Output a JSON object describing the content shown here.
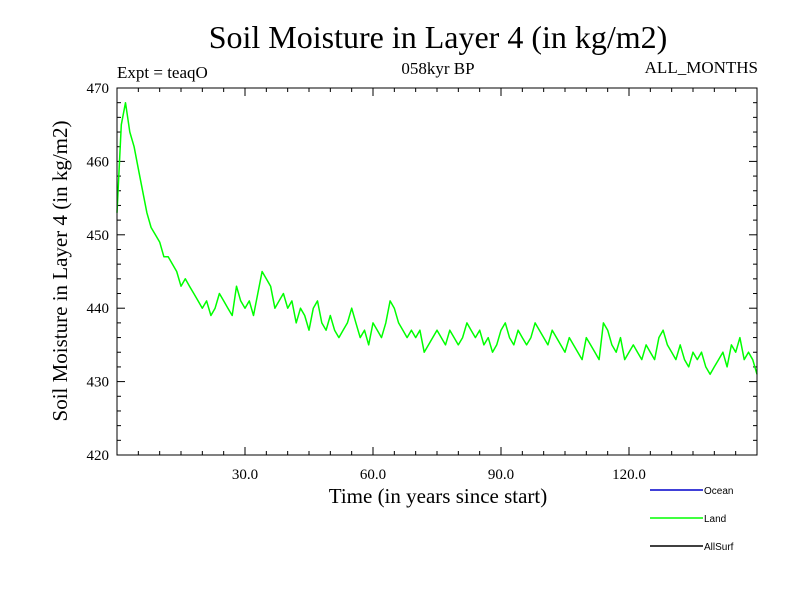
{
  "chart_data": {
    "type": "line",
    "title": "Soil Moisture in Layer 4 (in kg/m2)",
    "subtitle_left": "Expt = teaqO",
    "subtitle_center": "058kyr BP",
    "subtitle_right": "ALL_MONTHS",
    "xlabel": "Time (in years since start)",
    "ylabel": "Soil Moisture in Layer 4 (in kg/m2)",
    "xlim": [
      0,
      150
    ],
    "ylim": [
      420,
      470
    ],
    "x_ticks": [
      30,
      60,
      90,
      120
    ],
    "x_tick_labels": [
      "30.0",
      "60.0",
      "90.0",
      "120.0"
    ],
    "y_ticks": [
      420,
      430,
      440,
      450,
      460,
      470
    ],
    "y_tick_labels": [
      "420",
      "430",
      "440",
      "450",
      "460",
      "470"
    ],
    "legend": [
      {
        "name": "Ocean",
        "color": "#0000cc"
      },
      {
        "name": "Land",
        "color": "#00ff00"
      },
      {
        "name": "AllSurf",
        "color": "#000000"
      }
    ],
    "series": [
      {
        "name": "Land",
        "color": "#00ff00",
        "x": [
          0,
          1,
          2,
          3,
          4,
          5,
          6,
          7,
          8,
          9,
          10,
          11,
          12,
          13,
          14,
          15,
          16,
          17,
          18,
          19,
          20,
          21,
          22,
          23,
          24,
          25,
          26,
          27,
          28,
          29,
          30,
          31,
          32,
          33,
          34,
          35,
          36,
          37,
          38,
          39,
          40,
          41,
          42,
          43,
          44,
          45,
          46,
          47,
          48,
          49,
          50,
          51,
          52,
          53,
          54,
          55,
          56,
          57,
          58,
          59,
          60,
          61,
          62,
          63,
          64,
          65,
          66,
          67,
          68,
          69,
          70,
          71,
          72,
          73,
          74,
          75,
          76,
          77,
          78,
          79,
          80,
          81,
          82,
          83,
          84,
          85,
          86,
          87,
          88,
          89,
          90,
          91,
          92,
          93,
          94,
          95,
          96,
          97,
          98,
          99,
          100,
          101,
          102,
          103,
          104,
          105,
          106,
          107,
          108,
          109,
          110,
          111,
          112,
          113,
          114,
          115,
          116,
          117,
          118,
          119,
          120,
          121,
          122,
          123,
          124,
          125,
          126,
          127,
          128,
          129,
          130,
          131,
          132,
          133,
          134,
          135,
          136,
          137,
          138,
          139,
          140,
          141,
          142,
          143,
          144,
          145,
          146,
          147,
          148,
          149,
          150
        ],
        "values": [
          453,
          465,
          468,
          464,
          462,
          459,
          456,
          453,
          451,
          450,
          449,
          447,
          447,
          446,
          445,
          443,
          444,
          443,
          442,
          441,
          440,
          441,
          439,
          440,
          442,
          441,
          440,
          439,
          443,
          441,
          440,
          441,
          439,
          442,
          445,
          444,
          443,
          440,
          441,
          442,
          440,
          441,
          438,
          440,
          439,
          437,
          440,
          441,
          438,
          437,
          439,
          437,
          436,
          437,
          438,
          440,
          438,
          436,
          437,
          435,
          438,
          437,
          436,
          438,
          441,
          440,
          438,
          437,
          436,
          437,
          436,
          437,
          434,
          435,
          436,
          437,
          436,
          435,
          437,
          436,
          435,
          436,
          438,
          437,
          436,
          437,
          435,
          436,
          434,
          435,
          437,
          438,
          436,
          435,
          437,
          436,
          435,
          436,
          438,
          437,
          436,
          435,
          437,
          436,
          435,
          434,
          436,
          435,
          434,
          433,
          436,
          435,
          434,
          433,
          438,
          437,
          435,
          434,
          436,
          433,
          434,
          435,
          434,
          433,
          435,
          434,
          433,
          436,
          437,
          435,
          434,
          433,
          435,
          433,
          432,
          434,
          433,
          434,
          432,
          431,
          432,
          433,
          434,
          432,
          435,
          434,
          436,
          433,
          434,
          433,
          431
        ]
      }
    ]
  }
}
